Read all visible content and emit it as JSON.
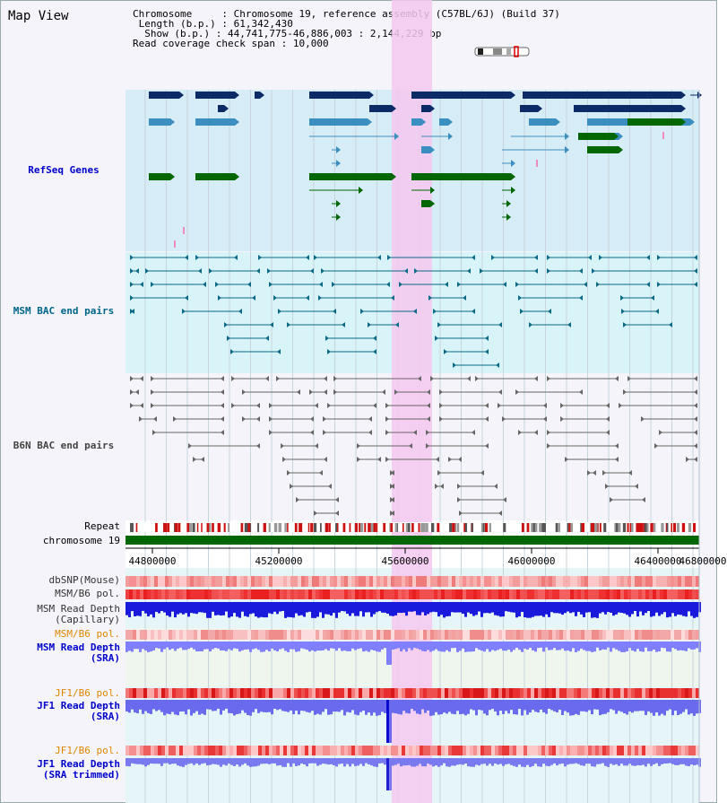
{
  "title": "Map View",
  "info": {
    "chromosome_key": "Chromosome",
    "chromosome_val": "Chromosome 19, reference assembly (C57BL/6J) (Build 37)",
    "length_key": "Length (b.p.)",
    "length_val": "61,342,430",
    "show_key": "Show (b.p.)",
    "show_val": "44,741,775-46,886,003 : 2,144,229 bp",
    "coverage_key": "Read coverage check span",
    "coverage_val": "10,000"
  },
  "tracks": {
    "refseq": "RefSeq Genes",
    "msm_bac": "MSM BAC end pairs",
    "b6n_bac": "B6N BAC end pairs",
    "repeat": "Repeat",
    "chromosome": "chromosome 19",
    "dbsnp": "dbSNP(Mouse)",
    "msm_b6_pol": "MSM/B6 pol.",
    "msm_depth_cap_1": "MSM Read Depth",
    "msm_depth_cap_2": "(Capillary)",
    "msm_b6_pol_2": "MSM/B6 pol.",
    "msm_depth_sra_1": "MSM Read Depth",
    "msm_depth_sra_2": "(SRA)",
    "jf1_b6_pol": "JF1/B6 pol.",
    "jf1_depth_sra_1": "JF1 Read Depth",
    "jf1_depth_sra_2": "(SRA)",
    "jf1_b6_pol_2": "JF1/B6 pol.",
    "jf1_depth_trim_1": "JF1 Read Depth",
    "jf1_depth_trim_2": "(SRA trimmed)"
  },
  "axis": {
    "ticks": [
      "44800000",
      "45200000",
      "45600000",
      "46000000",
      "46400000",
      "46800000"
    ]
  },
  "colors": {
    "refseq_label": "#0000cc",
    "msm_label": "#006688",
    "b6n_label": "#333333",
    "pol_label": "#dd8800",
    "depth_label": "#0000cc",
    "highlight": "#f4c8f0",
    "refseq_dark": "#0b2a66",
    "refseq_mid": "#3a8fc0",
    "refseq_green": "#006600",
    "msm_bg": "#d8f4f8",
    "refseq_bg": "#d6ecf6"
  }
}
